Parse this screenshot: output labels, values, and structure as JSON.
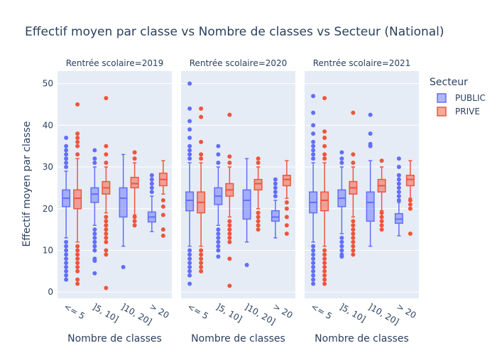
{
  "chart_data": {
    "type": "box",
    "title": "Effectif moyen par classe vs Nombre de classes vs Secteur (National)",
    "ylabel": "Effectif moyen par classe",
    "xlabel": "Nombre de classes",
    "ylim": [
      -1.5,
      53
    ],
    "yticks": [
      0,
      10,
      20,
      30,
      40,
      50
    ],
    "grid": true,
    "categories": [
      "<= 5",
      "]5, 10]",
      "]10, 20]",
      "> 20"
    ],
    "legend": {
      "title": "Secteur",
      "position": "top-right",
      "items": [
        {
          "name": "PUBLIC",
          "color": "#636efa"
        },
        {
          "name": "PRIVE",
          "color": "#ef553b"
        }
      ]
    },
    "colors": {
      "PUBLIC": "#636efa",
      "PRIVE": "#ef553b"
    },
    "facets": [
      {
        "title": "Rentrée scolaire=2019",
        "series": [
          {
            "name": "PUBLIC",
            "boxes": [
              {
                "min": 13,
                "q1": 20.5,
                "median": 22.5,
                "q3": 24.5,
                "max": 29,
                "outliers": [
                  3,
                  4,
                  5,
                  6,
                  7,
                  8,
                  9,
                  10,
                  11,
                  12,
                  30,
                  31,
                  32,
                  33,
                  34,
                  35,
                  37
                ]
              },
              {
                "min": 16,
                "q1": 21.5,
                "median": 23.5,
                "q3": 25,
                "max": 30,
                "outliers": [
                  4.5,
                  7.5,
                  8,
                  10,
                  11,
                  12,
                  13,
                  14,
                  15,
                  31,
                  32,
                  34
                ]
              },
              {
                "min": 11,
                "q1": 18,
                "median": 22.5,
                "q3": 25,
                "max": 33,
                "outliers": [
                  6
                ]
              },
              {
                "min": 14.5,
                "q1": 16.8,
                "median": 18,
                "q3": 19.2,
                "max": 23,
                "outliers": [
                  24,
                  25,
                  26,
                  27,
                  28
                ]
              }
            ]
          },
          {
            "name": "PRIVE",
            "boxes": [
              {
                "min": 12,
                "q1": 20,
                "median": 22.5,
                "q3": 24.5,
                "max": 32,
                "outliers": [
                  2,
                  3,
                  5,
                  6,
                  7,
                  8,
                  9,
                  10,
                  11,
                  33,
                  35,
                  36,
                  37,
                  38,
                  45
                ]
              },
              {
                "min": 19,
                "q1": 23.5,
                "median": 25,
                "q3": 26.5,
                "max": 30,
                "outliers": [
                  1,
                  9,
                  10,
                  12,
                  13,
                  14,
                  15,
                  16,
                  17,
                  18,
                  31,
                  33,
                  35,
                  46.5
                ]
              },
              {
                "min": 18.5,
                "q1": 25,
                "median": 26,
                "q3": 27.5,
                "max": 31,
                "outliers": [
                  16,
                  17,
                  18,
                  32,
                  33.5
                ]
              },
              {
                "min": 23.5,
                "q1": 25.5,
                "median": 27,
                "q3": 28.5,
                "max": 31.5,
                "outliers": [
                  13.5,
                  15,
                  18.5,
                  20.5,
                  22
                ]
              }
            ]
          }
        ]
      },
      {
        "title": "Rentrée scolaire=2020",
        "series": [
          {
            "name": "PUBLIC",
            "boxes": [
              {
                "min": 11,
                "q1": 19.5,
                "median": 22,
                "q3": 24,
                "max": 31,
                "outliers": [
                  2,
                  4,
                  5,
                  6,
                  7,
                  8,
                  9,
                  10,
                  32,
                  33,
                  34,
                  35,
                  37,
                  39,
                  41,
                  44,
                  50
                ]
              },
              {
                "min": 16,
                "q1": 21,
                "median": 23,
                "q3": 25,
                "max": 30,
                "outliers": [
                  8.5,
                  10,
                  11,
                  12,
                  13,
                  14,
                  15,
                  31,
                  33,
                  35
                ]
              },
              {
                "min": 12,
                "q1": 17.5,
                "median": 22,
                "q3": 24.5,
                "max": 32,
                "outliers": [
                  6.5
                ]
              },
              {
                "min": 13,
                "q1": 17,
                "median": 18,
                "q3": 19.5,
                "max": 22,
                "outliers": [
                  23,
                  24,
                  25,
                  26,
                  27
                ]
              }
            ]
          },
          {
            "name": "PRIVE",
            "boxes": [
              {
                "min": 11,
                "q1": 19,
                "median": 21.5,
                "q3": 24,
                "max": 31,
                "outliers": [
                  5,
                  6,
                  7,
                  8,
                  9,
                  10,
                  32,
                  33,
                  36,
                  42,
                  44
                ]
              },
              {
                "min": 18,
                "q1": 23,
                "median": 24.5,
                "q3": 26,
                "max": 30,
                "outliers": [
                  1.5,
                  8,
                  12,
                  13,
                  14,
                  15,
                  16,
                  17,
                  31,
                  32.5,
                  42.5
                ]
              },
              {
                "min": 20,
                "q1": 24.5,
                "median": 26,
                "q3": 27,
                "max": 30,
                "outliers": [
                  15,
                  16,
                  17,
                  18,
                  19,
                  31,
                  32
                ]
              },
              {
                "min": 22.5,
                "q1": 25.5,
                "median": 27,
                "q3": 28,
                "max": 31.5,
                "outliers": [
                  14,
                  16,
                  18,
                  20,
                  21.5
                ]
              }
            ]
          }
        ]
      },
      {
        "title": "Rentrée scolaire=2021",
        "series": [
          {
            "name": "PUBLIC",
            "boxes": [
              {
                "min": 12,
                "q1": 19,
                "median": 21.5,
                "q3": 24,
                "max": 31,
                "outliers": [
                  2,
                  3,
                  4,
                  5,
                  6,
                  7,
                  8,
                  9,
                  10,
                  11,
                  32,
                  33,
                  34,
                  35,
                  36,
                  38,
                  40,
                  43,
                  47
                ]
              },
              {
                "min": 14,
                "q1": 20.5,
                "median": 22.5,
                "q3": 24.5,
                "max": 30,
                "outliers": [
                  8.5,
                  9,
                  10,
                  11,
                  12,
                  13,
                  31,
                  32,
                  33.5
                ]
              },
              {
                "min": 11,
                "q1": 17,
                "median": 21.5,
                "q3": 24,
                "max": 31.5,
                "outliers": [
                  35,
                  35.5,
                  38,
                  42.5
                ]
              },
              {
                "min": 13.5,
                "q1": 16.5,
                "median": 17.5,
                "q3": 18.8,
                "max": 21.5,
                "outliers": [
                  22,
                  23,
                  24,
                  25,
                  26,
                  27,
                  28,
                  30,
                  32
                ]
              }
            ]
          },
          {
            "name": "PRIVE",
            "boxes": [
              {
                "min": 11,
                "q1": 19.5,
                "median": 22,
                "q3": 24,
                "max": 31,
                "outliers": [
                  2,
                  3,
                  4,
                  5,
                  6,
                  7,
                  8,
                  9,
                  10,
                  32,
                  33,
                  35,
                  37,
                  38.5,
                  46.5
                ]
              },
              {
                "min": 18,
                "q1": 23.5,
                "median": 25,
                "q3": 26.5,
                "max": 30,
                "outliers": [
                  9,
                  10,
                  11,
                  12,
                  13,
                  14,
                  15,
                  16,
                  17,
                  31,
                  33,
                  43
                ]
              },
              {
                "min": 19.5,
                "q1": 24,
                "median": 25.5,
                "q3": 27,
                "max": 30,
                "outliers": [
                  15,
                  16,
                  17,
                  18,
                  19,
                  31.5
                ]
              },
              {
                "min": 22.5,
                "q1": 25.5,
                "median": 27,
                "q3": 28,
                "max": 31.5,
                "outliers": [
                  14,
                  20,
                  21,
                  22
                ]
              }
            ]
          }
        ]
      }
    ]
  }
}
